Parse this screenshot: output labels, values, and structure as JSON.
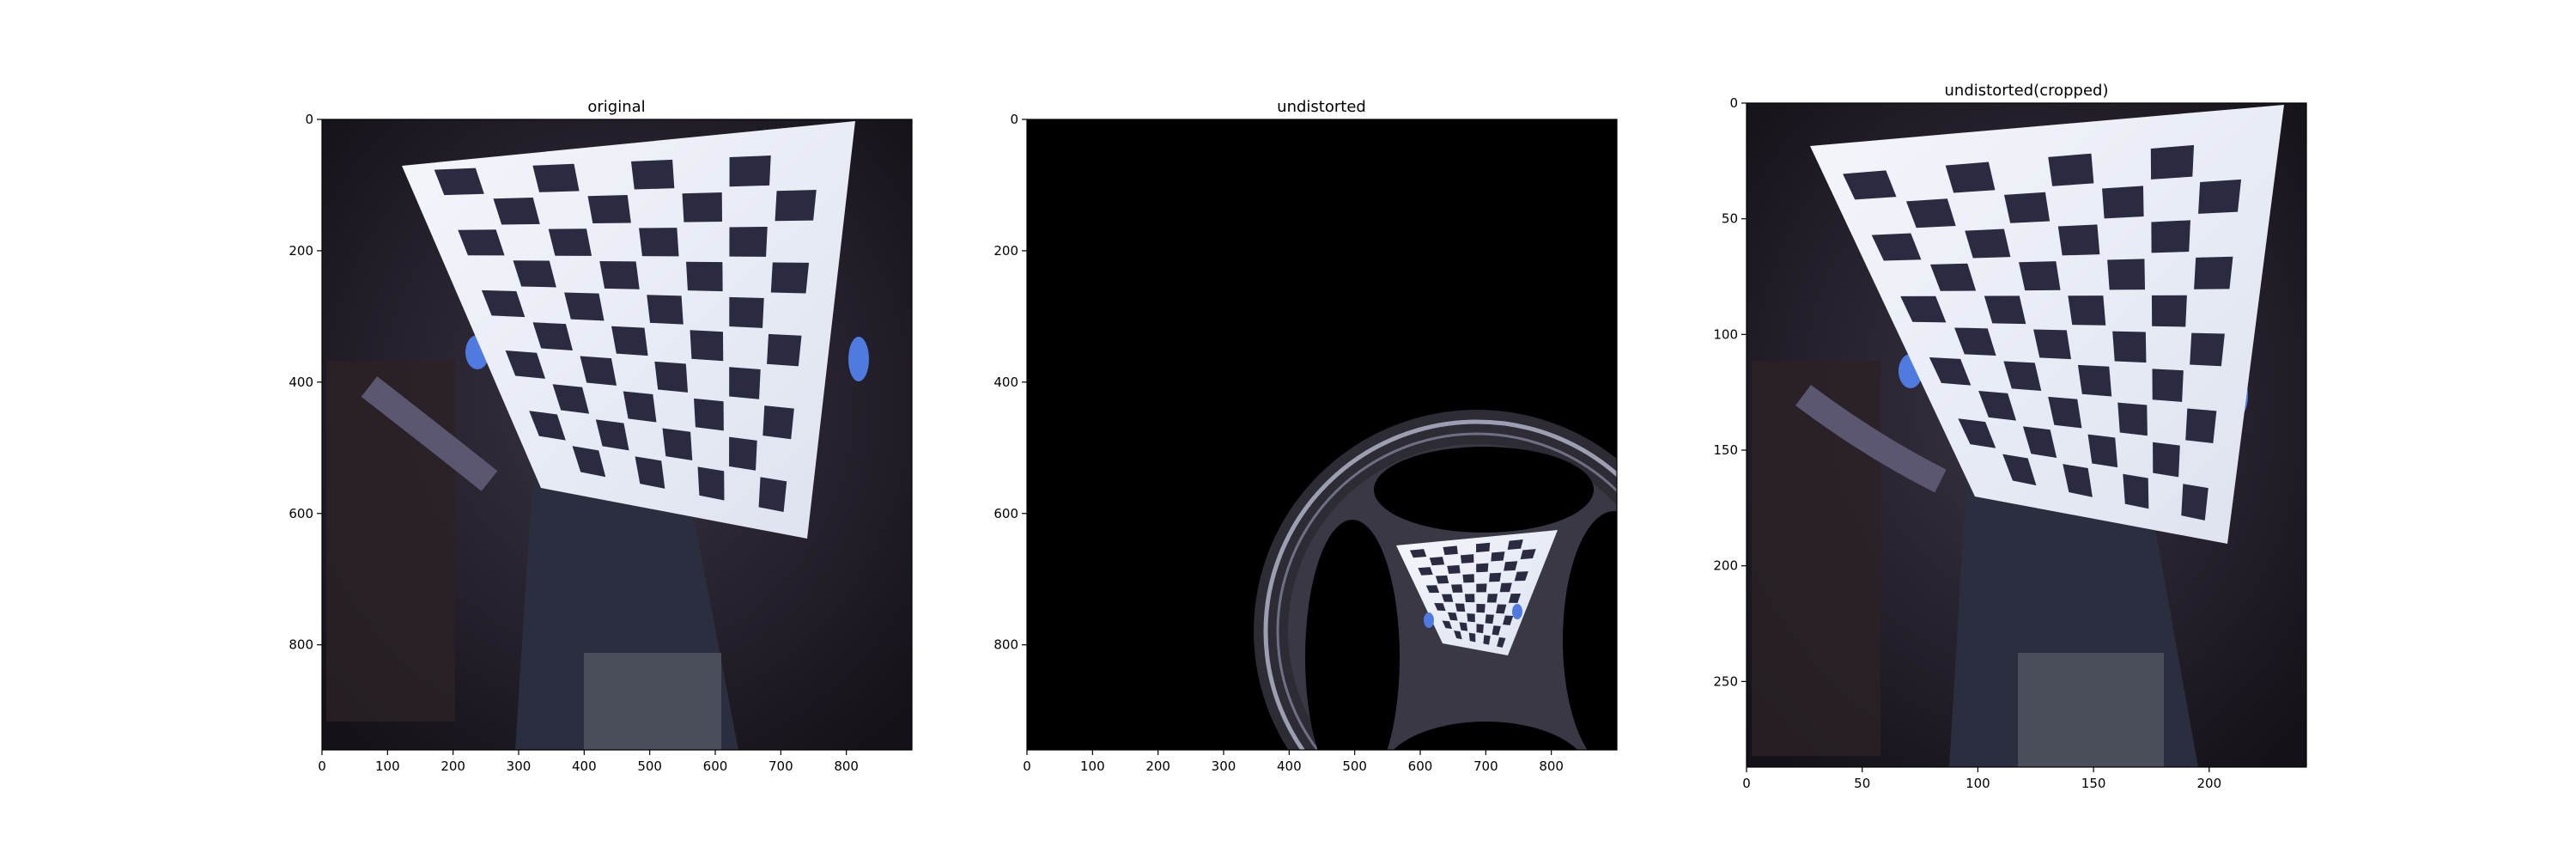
{
  "chart_data": [
    {
      "type": "image",
      "title": "original",
      "xlabel": "",
      "ylabel": "",
      "xlim": [
        0,
        900
      ],
      "ylim": [
        960,
        0
      ],
      "xticks": [
        0,
        100,
        200,
        300,
        400,
        500,
        600,
        700,
        800
      ],
      "yticks": [
        0,
        200,
        400,
        600,
        800
      ],
      "grid": false
    },
    {
      "type": "image",
      "title": "undistorted",
      "xlabel": "",
      "ylabel": "",
      "xlim": [
        0,
        900
      ],
      "ylim": [
        960,
        0
      ],
      "xticks": [
        0,
        100,
        200,
        300,
        400,
        500,
        600,
        700,
        800
      ],
      "yticks": [
        0,
        200,
        400,
        600,
        800
      ],
      "grid": false
    },
    {
      "type": "image",
      "title": "undistorted(cropped)",
      "xlabel": "",
      "ylabel": "",
      "xlim": [
        0,
        242
      ],
      "ylim": [
        287,
        0
      ],
      "xticks": [
        0,
        50,
        100,
        150,
        200
      ],
      "yticks": [
        0,
        50,
        100,
        150,
        200,
        250
      ],
      "grid": false
    }
  ],
  "colors": {
    "background": "#ffffff",
    "scene_dark": "#1e1a26",
    "board_white": "#e8ecf6",
    "board_square": "#2a2a40",
    "glove_blue": "#4f7ae0",
    "black_fill": "#000000"
  }
}
